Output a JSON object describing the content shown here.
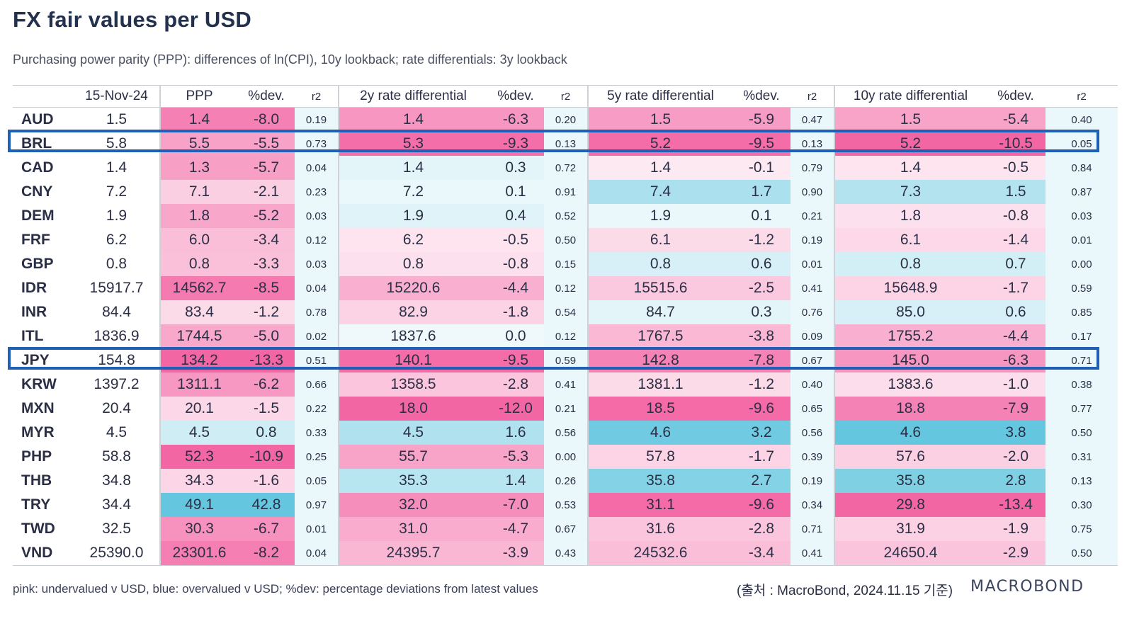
{
  "title": "FX fair values per USD",
  "subtitle": "Purchasing power parity (PPP): differences of ln(CPI), 10y lookback; rate differentials: 3y lookback",
  "columns": [
    "",
    "15-Nov-24",
    "PPP",
    "%dev.",
    "r2",
    "2y rate differential",
    "%dev.",
    "r2",
    "5y rate differential",
    "%dev.",
    "r2",
    "10y rate differential",
    "%dev.",
    "r2"
  ],
  "rows": [
    {
      "ccy": "AUD",
      "spot": "1.5",
      "ppp": "1.4",
      "ppp_dev": "-8.0",
      "ppp_r2": "0.19",
      "r2y": "1.4",
      "r2y_dev": "-6.3",
      "r2y_r2": "0.20",
      "r5y": "1.5",
      "r5y_dev": "-5.9",
      "r5y_r2": "0.47",
      "r10y": "1.5",
      "r10y_dev": "-5.4",
      "r10y_r2": "0.40"
    },
    {
      "ccy": "BRL",
      "spot": "5.8",
      "ppp": "5.5",
      "ppp_dev": "-5.5",
      "ppp_r2": "0.73",
      "r2y": "5.3",
      "r2y_dev": "-9.3",
      "r2y_r2": "0.13",
      "r5y": "5.2",
      "r5y_dev": "-9.5",
      "r5y_r2": "0.13",
      "r10y": "5.2",
      "r10y_dev": "-10.5",
      "r10y_r2": "0.05"
    },
    {
      "ccy": "CAD",
      "spot": "1.4",
      "ppp": "1.3",
      "ppp_dev": "-5.7",
      "ppp_r2": "0.04",
      "r2y": "1.4",
      "r2y_dev": "0.3",
      "r2y_r2": "0.72",
      "r5y": "1.4",
      "r5y_dev": "-0.1",
      "r5y_r2": "0.79",
      "r10y": "1.4",
      "r10y_dev": "-0.5",
      "r10y_r2": "0.84"
    },
    {
      "ccy": "CNY",
      "spot": "7.2",
      "ppp": "7.1",
      "ppp_dev": "-2.1",
      "ppp_r2": "0.23",
      "r2y": "7.2",
      "r2y_dev": "0.1",
      "r2y_r2": "0.91",
      "r5y": "7.4",
      "r5y_dev": "1.7",
      "r5y_r2": "0.90",
      "r10y": "7.3",
      "r10y_dev": "1.5",
      "r10y_r2": "0.87"
    },
    {
      "ccy": "DEM",
      "spot": "1.9",
      "ppp": "1.8",
      "ppp_dev": "-5.2",
      "ppp_r2": "0.03",
      "r2y": "1.9",
      "r2y_dev": "0.4",
      "r2y_r2": "0.52",
      "r5y": "1.9",
      "r5y_dev": "0.1",
      "r5y_r2": "0.21",
      "r10y": "1.8",
      "r10y_dev": "-0.8",
      "r10y_r2": "0.03"
    },
    {
      "ccy": "FRF",
      "spot": "6.2",
      "ppp": "6.0",
      "ppp_dev": "-3.4",
      "ppp_r2": "0.12",
      "r2y": "6.2",
      "r2y_dev": "-0.5",
      "r2y_r2": "0.50",
      "r5y": "6.1",
      "r5y_dev": "-1.2",
      "r5y_r2": "0.19",
      "r10y": "6.1",
      "r10y_dev": "-1.4",
      "r10y_r2": "0.01"
    },
    {
      "ccy": "GBP",
      "spot": "0.8",
      "ppp": "0.8",
      "ppp_dev": "-3.3",
      "ppp_r2": "0.03",
      "r2y": "0.8",
      "r2y_dev": "-0.8",
      "r2y_r2": "0.15",
      "r5y": "0.8",
      "r5y_dev": "0.6",
      "r5y_r2": "0.01",
      "r10y": "0.8",
      "r10y_dev": "0.7",
      "r10y_r2": "0.00"
    },
    {
      "ccy": "IDR",
      "spot": "15917.7",
      "ppp": "14562.7",
      "ppp_dev": "-8.5",
      "ppp_r2": "0.04",
      "r2y": "15220.6",
      "r2y_dev": "-4.4",
      "r2y_r2": "0.12",
      "r5y": "15515.6",
      "r5y_dev": "-2.5",
      "r5y_r2": "0.41",
      "r10y": "15648.9",
      "r10y_dev": "-1.7",
      "r10y_r2": "0.59"
    },
    {
      "ccy": "INR",
      "spot": "84.4",
      "ppp": "83.4",
      "ppp_dev": "-1.2",
      "ppp_r2": "0.78",
      "r2y": "82.9",
      "r2y_dev": "-1.8",
      "r2y_r2": "0.54",
      "r5y": "84.7",
      "r5y_dev": "0.3",
      "r5y_r2": "0.76",
      "r10y": "85.0",
      "r10y_dev": "0.6",
      "r10y_r2": "0.85"
    },
    {
      "ccy": "ITL",
      "spot": "1836.9",
      "ppp": "1744.5",
      "ppp_dev": "-5.0",
      "ppp_r2": "0.02",
      "r2y": "1837.6",
      "r2y_dev": "0.0",
      "r2y_r2": "0.12",
      "r5y": "1767.5",
      "r5y_dev": "-3.8",
      "r5y_r2": "0.09",
      "r10y": "1755.2",
      "r10y_dev": "-4.4",
      "r10y_r2": "0.17"
    },
    {
      "ccy": "JPY",
      "spot": "154.8",
      "ppp": "134.2",
      "ppp_dev": "-13.3",
      "ppp_r2": "0.51",
      "r2y": "140.1",
      "r2y_dev": "-9.5",
      "r2y_r2": "0.59",
      "r5y": "142.8",
      "r5y_dev": "-7.8",
      "r5y_r2": "0.67",
      "r10y": "145.0",
      "r10y_dev": "-6.3",
      "r10y_r2": "0.71"
    },
    {
      "ccy": "KRW",
      "spot": "1397.2",
      "ppp": "1311.1",
      "ppp_dev": "-6.2",
      "ppp_r2": "0.66",
      "r2y": "1358.5",
      "r2y_dev": "-2.8",
      "r2y_r2": "0.41",
      "r5y": "1381.1",
      "r5y_dev": "-1.2",
      "r5y_r2": "0.40",
      "r10y": "1383.6",
      "r10y_dev": "-1.0",
      "r10y_r2": "0.38"
    },
    {
      "ccy": "MXN",
      "spot": "20.4",
      "ppp": "20.1",
      "ppp_dev": "-1.5",
      "ppp_r2": "0.22",
      "r2y": "18.0",
      "r2y_dev": "-12.0",
      "r2y_r2": "0.21",
      "r5y": "18.5",
      "r5y_dev": "-9.6",
      "r5y_r2": "0.65",
      "r10y": "18.8",
      "r10y_dev": "-7.9",
      "r10y_r2": "0.77"
    },
    {
      "ccy": "MYR",
      "spot": "4.5",
      "ppp": "4.5",
      "ppp_dev": "0.8",
      "ppp_r2": "0.33",
      "r2y": "4.5",
      "r2y_dev": "1.6",
      "r2y_r2": "0.56",
      "r5y": "4.6",
      "r5y_dev": "3.2",
      "r5y_r2": "0.56",
      "r10y": "4.6",
      "r10y_dev": "3.8",
      "r10y_r2": "0.50"
    },
    {
      "ccy": "PHP",
      "spot": "58.8",
      "ppp": "52.3",
      "ppp_dev": "-10.9",
      "ppp_r2": "0.25",
      "r2y": "55.7",
      "r2y_dev": "-5.3",
      "r2y_r2": "0.00",
      "r5y": "57.8",
      "r5y_dev": "-1.7",
      "r5y_r2": "0.39",
      "r10y": "57.6",
      "r10y_dev": "-2.0",
      "r10y_r2": "0.31"
    },
    {
      "ccy": "THB",
      "spot": "34.8",
      "ppp": "34.3",
      "ppp_dev": "-1.6",
      "ppp_r2": "0.05",
      "r2y": "35.3",
      "r2y_dev": "1.4",
      "r2y_r2": "0.26",
      "r5y": "35.8",
      "r5y_dev": "2.7",
      "r5y_r2": "0.19",
      "r10y": "35.8",
      "r10y_dev": "2.8",
      "r10y_r2": "0.13"
    },
    {
      "ccy": "TRY",
      "spot": "34.4",
      "ppp": "49.1",
      "ppp_dev": "42.8",
      "ppp_r2": "0.97",
      "r2y": "32.0",
      "r2y_dev": "-7.0",
      "r2y_r2": "0.53",
      "r5y": "31.1",
      "r5y_dev": "-9.6",
      "r5y_r2": "0.34",
      "r10y": "29.8",
      "r10y_dev": "-13.4",
      "r10y_r2": "0.30"
    },
    {
      "ccy": "TWD",
      "spot": "32.5",
      "ppp": "30.3",
      "ppp_dev": "-6.7",
      "ppp_r2": "0.01",
      "r2y": "31.0",
      "r2y_dev": "-4.7",
      "r2y_r2": "0.67",
      "r5y": "31.6",
      "r5y_dev": "-2.8",
      "r5y_r2": "0.71",
      "r10y": "31.9",
      "r10y_dev": "-1.9",
      "r10y_r2": "0.75"
    },
    {
      "ccy": "VND",
      "spot": "25390.0",
      "ppp": "23301.6",
      "ppp_dev": "-8.2",
      "ppp_r2": "0.04",
      "r2y": "24395.7",
      "r2y_dev": "-3.9",
      "r2y_r2": "0.43",
      "r5y": "24532.6",
      "r5y_dev": "-3.4",
      "r5y_r2": "0.41",
      "r10y": "24650.4",
      "r10y_dev": "-2.9",
      "r10y_r2": "0.50"
    }
  ],
  "highlighted_rows": [
    "BRL",
    "JPY"
  ],
  "colors": {
    "pink_strong": "#f2559a",
    "pink_light": "#fde6f0",
    "blue_strong": "#5cc3dd",
    "blue_light": "#eaf7fb",
    "r2_bg": "#eaf7fb",
    "highlight_border": "#1f5fb6"
  },
  "footnote": "pink: undervalued v USD, blue: overvalued v USD; %dev: percentage deviations from latest values",
  "source": "(출처 : MacroBond, 2024.11.15 기준)",
  "logo_text": "MACROBOND"
}
